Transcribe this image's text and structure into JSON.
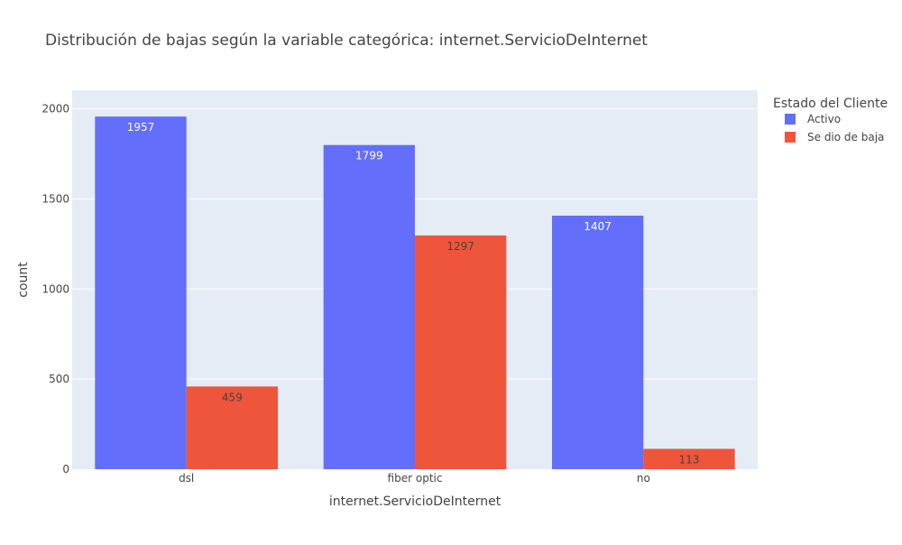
{
  "chart_data": {
    "type": "bar",
    "title": "Distribución de bajas según la variable categórica: internet.ServicioDeInternet",
    "xlabel": "internet.ServicioDeInternet",
    "ylabel": "count",
    "categories": [
      "dsl",
      "fiber optic",
      "no"
    ],
    "series": [
      {
        "name": "Activo",
        "values": [
          1957,
          1799,
          1407
        ],
        "color": "#636efa",
        "label_color": "#ffffff"
      },
      {
        "name": "Se dio de baja",
        "values": [
          459,
          1297,
          113
        ],
        "color": "#ef553b",
        "label_color": "#444444"
      }
    ],
    "ylim": [
      0,
      2103
    ],
    "yticks": [
      0,
      500,
      1000,
      1500,
      2000
    ],
    "grid": true,
    "legend": {
      "title": "Estado del Cliente",
      "position": "top-right"
    },
    "colors": {
      "plot_background": "#e5ecf6",
      "gridline": "#ffffff",
      "text": "#444444"
    }
  }
}
